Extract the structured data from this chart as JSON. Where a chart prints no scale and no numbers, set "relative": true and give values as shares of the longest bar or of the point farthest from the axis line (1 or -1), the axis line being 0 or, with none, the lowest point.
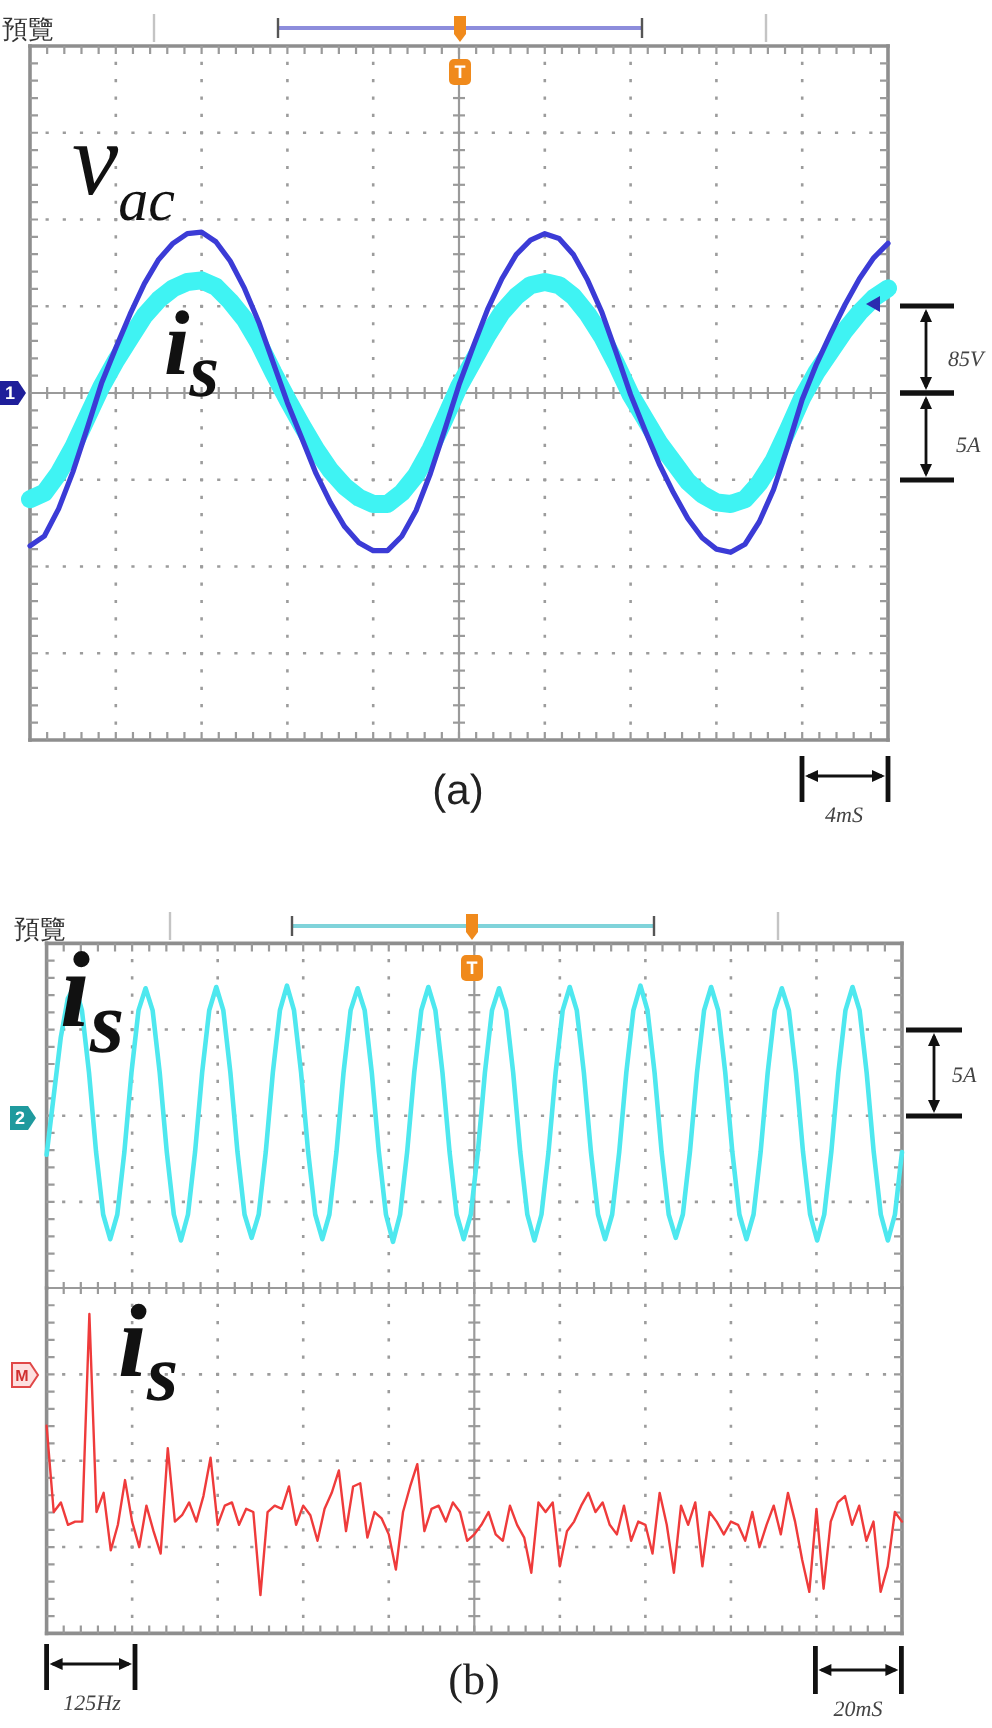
{
  "chart_data": [
    {
      "type": "line",
      "title": "預覽",
      "relative": true,
      "grid": true,
      "categories": [
        null,
        null,
        null,
        null,
        null,
        null,
        null,
        null,
        null,
        null,
        null,
        null,
        null,
        null,
        null,
        null,
        null,
        null,
        null,
        null,
        null,
        null,
        null,
        null,
        null,
        null,
        null,
        null,
        null,
        null,
        null,
        null,
        null,
        null,
        null,
        null,
        null,
        null,
        null,
        null,
        null,
        null,
        null,
        null,
        null,
        null,
        null,
        null,
        null,
        null,
        null,
        null,
        null,
        null,
        null,
        null,
        null,
        null,
        null,
        null,
        null
      ],
      "series": [
        {
          "name": "v$_{ac}$",
          "color": "#3b3bd6",
          "values": [
            -0.95,
            -0.89,
            -0.72,
            -0.49,
            -0.22,
            0.06,
            0.28,
            0.49,
            0.68,
            0.83,
            0.93,
            0.99,
            1.0,
            0.94,
            0.82,
            0.65,
            0.44,
            0.19,
            -0.06,
            -0.28,
            -0.5,
            -0.68,
            -0.83,
            -0.93,
            -0.98,
            -0.98,
            -0.89,
            -0.73,
            -0.5,
            -0.23,
            0.05,
            0.29,
            0.52,
            0.71,
            0.86,
            0.95,
            0.99,
            0.96,
            0.86,
            0.7,
            0.5,
            0.25,
            -0.01,
            -0.23,
            -0.44,
            -0.62,
            -0.78,
            -0.9,
            -0.97,
            -0.99,
            -0.94,
            -0.8,
            -0.6,
            -0.33,
            -0.04,
            0.18,
            0.37,
            0.55,
            0.71,
            0.84,
            0.93
          ]
        },
        {
          "name": "i$_{s}$",
          "color": "#3ff3f3",
          "values": [
            -0.66,
            -0.62,
            -0.5,
            -0.34,
            -0.15,
            0.04,
            0.2,
            0.34,
            0.48,
            0.58,
            0.65,
            0.69,
            0.7,
            0.66,
            0.57,
            0.46,
            0.31,
            0.13,
            -0.04,
            -0.2,
            -0.35,
            -0.48,
            -0.58,
            -0.65,
            -0.69,
            -0.69,
            -0.62,
            -0.51,
            -0.35,
            -0.16,
            0.04,
            0.2,
            0.36,
            0.5,
            0.6,
            0.67,
            0.69,
            0.67,
            0.6,
            0.49,
            0.35,
            0.18,
            -0.01,
            -0.16,
            -0.31,
            -0.43,
            -0.55,
            -0.63,
            -0.68,
            -0.69,
            -0.66,
            -0.56,
            -0.42,
            -0.23,
            -0.03,
            0.13,
            0.26,
            0.39,
            0.5,
            0.59,
            0.65
          ]
        }
      ],
      "annotations": [
        "T",
        "1",
        "85V",
        "5A",
        "4mS",
        "(a)"
      ]
    },
    {
      "type": "line",
      "title": "預覽",
      "relative": true,
      "grid": true,
      "categories": [
        null,
        null,
        null,
        null,
        null,
        null,
        null,
        null,
        null,
        null,
        null,
        null,
        null,
        null,
        null,
        null,
        null,
        null,
        null,
        null,
        null,
        null,
        null,
        null,
        null,
        null,
        null,
        null,
        null,
        null,
        null,
        null,
        null,
        null,
        null,
        null,
        null,
        null,
        null,
        null,
        null,
        null,
        null,
        null,
        null,
        null,
        null,
        null,
        null,
        null,
        null,
        null,
        null,
        null,
        null,
        null,
        null,
        null,
        null,
        null,
        null,
        null,
        null,
        null,
        null,
        null,
        null,
        null,
        null,
        null,
        null,
        null,
        null,
        null,
        null,
        null,
        null,
        null,
        null,
        null,
        null,
        null,
        null,
        null,
        null,
        null,
        null,
        null,
        null,
        null,
        null,
        null,
        null,
        null,
        null,
        null,
        null,
        null,
        null,
        null,
        null,
        null,
        null,
        null,
        null,
        null,
        null,
        null,
        null,
        null,
        null,
        null,
        null,
        null,
        null,
        null,
        null,
        null,
        null,
        null,
        null,
        null
      ],
      "series": [
        {
          "name": "i$_{s}$",
          "color": "#4ee8ef",
          "values": [
            -0.3,
            0.15,
            0.6,
            0.9,
            1.0,
            0.81,
            0.33,
            -0.28,
            -0.76,
            -0.95,
            -0.76,
            -0.28,
            0.33,
            0.81,
            0.98,
            0.81,
            0.33,
            -0.28,
            -0.76,
            -0.96,
            -0.76,
            -0.28,
            0.33,
            0.81,
            0.99,
            0.81,
            0.33,
            -0.28,
            -0.76,
            -0.94,
            -0.76,
            -0.28,
            0.33,
            0.81,
            1.0,
            0.81,
            0.33,
            -0.28,
            -0.76,
            -0.95,
            -0.76,
            -0.28,
            0.33,
            0.81,
            0.98,
            0.81,
            0.33,
            -0.28,
            -0.76,
            -0.97,
            -0.76,
            -0.28,
            0.33,
            0.81,
            0.99,
            0.81,
            0.33,
            -0.28,
            -0.76,
            -0.95,
            -0.76,
            -0.28,
            0.33,
            0.81,
            0.98,
            0.81,
            0.33,
            -0.28,
            -0.76,
            -0.96,
            -0.76,
            -0.28,
            0.33,
            0.81,
            0.99,
            0.81,
            0.33,
            -0.28,
            -0.76,
            -0.95,
            -0.76,
            -0.28,
            0.33,
            0.81,
            1.0,
            0.81,
            0.33,
            -0.28,
            -0.76,
            -0.94,
            -0.76,
            -0.28,
            0.33,
            0.81,
            0.99,
            0.81,
            0.33,
            -0.28,
            -0.76,
            -0.95,
            -0.76,
            -0.28,
            0.33,
            0.81,
            0.98,
            0.81,
            0.33,
            -0.28,
            -0.76,
            -0.96,
            -0.76,
            -0.28,
            0.33,
            0.81,
            0.99,
            0.81,
            0.33,
            -0.28,
            -0.76,
            -0.96,
            -0.76,
            -0.28
          ]
        }
      ],
      "annotations": [
        "T",
        "2",
        "5A",
        "20mS"
      ]
    },
    {
      "type": "line",
      "relative": true,
      "grid": true,
      "categories": [
        null,
        null,
        null,
        null,
        null,
        null,
        null,
        null,
        null,
        null,
        null,
        null,
        null,
        null,
        null,
        null,
        null,
        null,
        null,
        null,
        null,
        null,
        null,
        null,
        null,
        null,
        null,
        null,
        null,
        null,
        null,
        null,
        null,
        null,
        null,
        null,
        null,
        null,
        null,
        null,
        null,
        null,
        null,
        null,
        null,
        null,
        null,
        null,
        null,
        null,
        null,
        null,
        null,
        null,
        null,
        null,
        null,
        null,
        null,
        null,
        null,
        null,
        null,
        null,
        null,
        null,
        null,
        null,
        null,
        null,
        null,
        null,
        null,
        null,
        null,
        null,
        null,
        null,
        null,
        null,
        null,
        null,
        null,
        null,
        null,
        null,
        null,
        null,
        null,
        null,
        null,
        null,
        null,
        null,
        null,
        null,
        null,
        null,
        null,
        null,
        null,
        null,
        null,
        null,
        null,
        null,
        null,
        null,
        null,
        null,
        null,
        null,
        null,
        null,
        null,
        null,
        null,
        null,
        null,
        null,
        null
      ],
      "series": [
        {
          "name": "i$_{s}$",
          "color": "#ef3b3b",
          "values": [
            0.65,
            0.38,
            0.41,
            0.34,
            0.35,
            0.35,
            1.0,
            0.38,
            0.44,
            0.26,
            0.34,
            0.48,
            0.35,
            0.27,
            0.4,
            0.32,
            0.25,
            0.58,
            0.35,
            0.37,
            0.41,
            0.35,
            0.43,
            0.55,
            0.34,
            0.4,
            0.41,
            0.34,
            0.39,
            0.38,
            0.12,
            0.38,
            0.4,
            0.39,
            0.46,
            0.34,
            0.4,
            0.37,
            0.29,
            0.39,
            0.44,
            0.51,
            0.32,
            0.46,
            0.47,
            0.3,
            0.38,
            0.36,
            0.31,
            0.2,
            0.38,
            0.46,
            0.53,
            0.32,
            0.39,
            0.4,
            0.35,
            0.41,
            0.38,
            0.29,
            0.31,
            0.34,
            0.38,
            0.31,
            0.29,
            0.4,
            0.34,
            0.3,
            0.19,
            0.41,
            0.38,
            0.41,
            0.21,
            0.32,
            0.35,
            0.4,
            0.44,
            0.38,
            0.41,
            0.34,
            0.31,
            0.4,
            0.29,
            0.35,
            0.34,
            0.25,
            0.44,
            0.34,
            0.19,
            0.4,
            0.34,
            0.41,
            0.21,
            0.38,
            0.35,
            0.31,
            0.35,
            0.34,
            0.29,
            0.38,
            0.27,
            0.34,
            0.4,
            0.31,
            0.44,
            0.35,
            0.23,
            0.13,
            0.39,
            0.14,
            0.35,
            0.41,
            0.43,
            0.34,
            0.4,
            0.29,
            0.35,
            0.13,
            0.21,
            0.38,
            0.35
          ]
        }
      ],
      "annotations": [
        "M",
        "125Hz",
        "(b)"
      ]
    }
  ]
}
